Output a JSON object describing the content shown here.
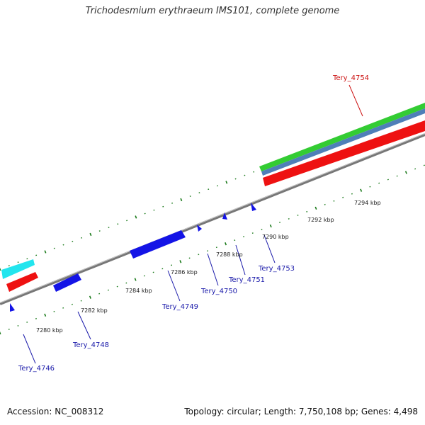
{
  "title": "Trichodesmium erythraeum IMS101, complete genome",
  "footer": {
    "accession": "Accession: NC_008312",
    "summary": "Topology: circular; Length: 7,750,108 bp; Genes: 4,498"
  },
  "colors": {
    "backbone": "#888888",
    "tick": "#1a7a1a",
    "gene_blue": "#1414e6",
    "gene_red": "#ee1111",
    "label_blue": "#1a1aaa",
    "label_red": "#cc1111",
    "cyan": "#22e5ee",
    "green": "#33cc33",
    "steel": "#4f7fb8"
  },
  "kbp_labels": [
    "7280 kbp",
    "7282 kbp",
    "7284 kbp",
    "7286 kbp",
    "7288 kbp",
    "7290 kbp",
    "7292 kbp",
    "7294 kbp"
  ],
  "genes": [
    {
      "name": "Tery_4746",
      "color": "blue"
    },
    {
      "name": "Tery_4748",
      "color": "blue"
    },
    {
      "name": "Tery_4749",
      "color": "blue"
    },
    {
      "name": "Tery_4750",
      "color": "blue"
    },
    {
      "name": "Tery_4751",
      "color": "blue"
    },
    {
      "name": "Tery_4753",
      "color": "blue"
    },
    {
      "name": "Tery_4754",
      "color": "red"
    }
  ]
}
